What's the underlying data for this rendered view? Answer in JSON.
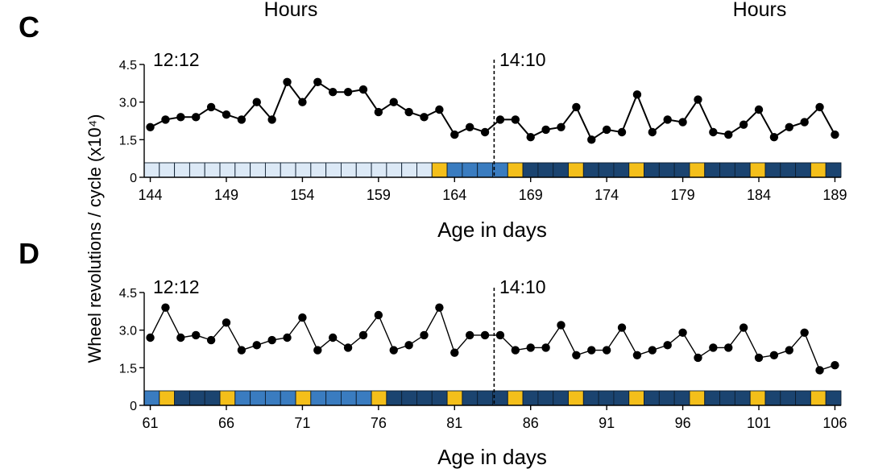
{
  "header_labels": [
    "Hours",
    "Hours"
  ],
  "y_axis_label": "Wheel revolutions / cycle (x10⁴)",
  "colors": {
    "line": "#000000",
    "cell_very_light": "#dce9f6",
    "cell_mid": "#3a7cc0",
    "cell_dark": "#1b4470",
    "cell_yellow": "#f4bf1a",
    "cell_border": "#0d1e30"
  },
  "chart_data": [
    {
      "type": "line",
      "panel": "C",
      "xlabel": "Age in days",
      "ylim": [
        0,
        4.5
      ],
      "yticks": [
        "0",
        "1.5",
        "3.0",
        "4.5"
      ],
      "xticks": [
        144,
        149,
        154,
        159,
        164,
        169,
        174,
        179,
        184,
        189
      ],
      "xlim": [
        143.6,
        189.4
      ],
      "phase_left": "12:12",
      "phase_right": "14:10",
      "phase_change_x": 166.6,
      "series": [
        {
          "x": [
            144,
            145,
            146,
            147,
            148,
            149,
            150,
            151,
            152,
            153,
            154,
            155,
            156,
            157,
            158,
            159,
            160,
            161,
            162,
            163,
            164,
            165,
            166,
            167,
            168,
            169,
            170,
            171,
            172,
            173,
            174,
            175,
            176,
            177,
            178,
            179,
            180,
            181,
            182,
            183,
            184,
            185,
            186,
            187,
            188,
            189
          ],
          "values": [
            2.0,
            2.3,
            2.4,
            2.4,
            2.8,
            2.5,
            2.3,
            3.0,
            2.3,
            3.8,
            3.0,
            3.8,
            3.4,
            3.4,
            3.5,
            2.6,
            3.0,
            2.6,
            2.4,
            2.7,
            1.7,
            2.0,
            1.8,
            2.3,
            2.3,
            1.6,
            1.9,
            2.0,
            2.8,
            1.5,
            1.9,
            1.8,
            3.3,
            1.8,
            2.3,
            2.2,
            3.1,
            1.8,
            1.7,
            2.1,
            2.7,
            1.6,
            2.0,
            2.2,
            2.8,
            1.7
          ]
        }
      ],
      "cells": [
        "L",
        "L",
        "L",
        "L",
        "L",
        "L",
        "L",
        "L",
        "L",
        "L",
        "L",
        "L",
        "L",
        "L",
        "L",
        "L",
        "L",
        "L",
        "L",
        "Y",
        "M",
        "M",
        "M",
        "M",
        "Y",
        "D",
        "D",
        "D",
        "Y",
        "D",
        "D",
        "D",
        "Y",
        "D",
        "D",
        "D",
        "Y",
        "D",
        "D",
        "D",
        "Y",
        "D",
        "D",
        "D",
        "Y",
        "D"
      ]
    },
    {
      "type": "line",
      "panel": "D",
      "xlabel": "Age in days",
      "ylim": [
        0,
        4.5
      ],
      "yticks": [
        "0",
        "1.5",
        "3.0",
        "4.5"
      ],
      "xticks": [
        61,
        66,
        71,
        76,
        81,
        86,
        91,
        96,
        101,
        106
      ],
      "xlim": [
        60.6,
        106.4
      ],
      "phase_left": "12:12",
      "phase_right": "14:10",
      "phase_change_x": 83.6,
      "series": [
        {
          "x": [
            61,
            62,
            63,
            64,
            65,
            66,
            67,
            68,
            69,
            70,
            71,
            72,
            73,
            74,
            75,
            76,
            77,
            78,
            79,
            80,
            81,
            82,
            83,
            84,
            85,
            86,
            87,
            88,
            89,
            90,
            91,
            92,
            93,
            94,
            95,
            96,
            97,
            98,
            99,
            100,
            101,
            102,
            103,
            104,
            105,
            106
          ],
          "values": [
            2.7,
            3.9,
            2.7,
            2.8,
            2.6,
            3.3,
            2.2,
            2.4,
            2.6,
            2.7,
            3.5,
            2.2,
            2.7,
            2.3,
            2.8,
            3.6,
            2.2,
            2.4,
            2.8,
            3.9,
            2.1,
            2.8,
            2.8,
            2.8,
            2.2,
            2.3,
            2.3,
            3.2,
            2.0,
            2.2,
            2.2,
            3.1,
            2.0,
            2.2,
            2.4,
            2.9,
            1.9,
            2.3,
            2.3,
            3.1,
            1.9,
            2.0,
            2.2,
            2.9,
            1.4,
            1.6
          ]
        }
      ],
      "cells": [
        "M",
        "Y",
        "D",
        "D",
        "D",
        "Y",
        "M",
        "M",
        "M",
        "M",
        "Y",
        "M",
        "M",
        "M",
        "M",
        "Y",
        "D",
        "D",
        "D",
        "D",
        "Y",
        "D",
        "D",
        "D",
        "Y",
        "D",
        "D",
        "D",
        "Y",
        "D",
        "D",
        "D",
        "Y",
        "D",
        "D",
        "D",
        "Y",
        "D",
        "D",
        "D",
        "Y",
        "D",
        "D",
        "D",
        "Y",
        "D"
      ]
    }
  ]
}
